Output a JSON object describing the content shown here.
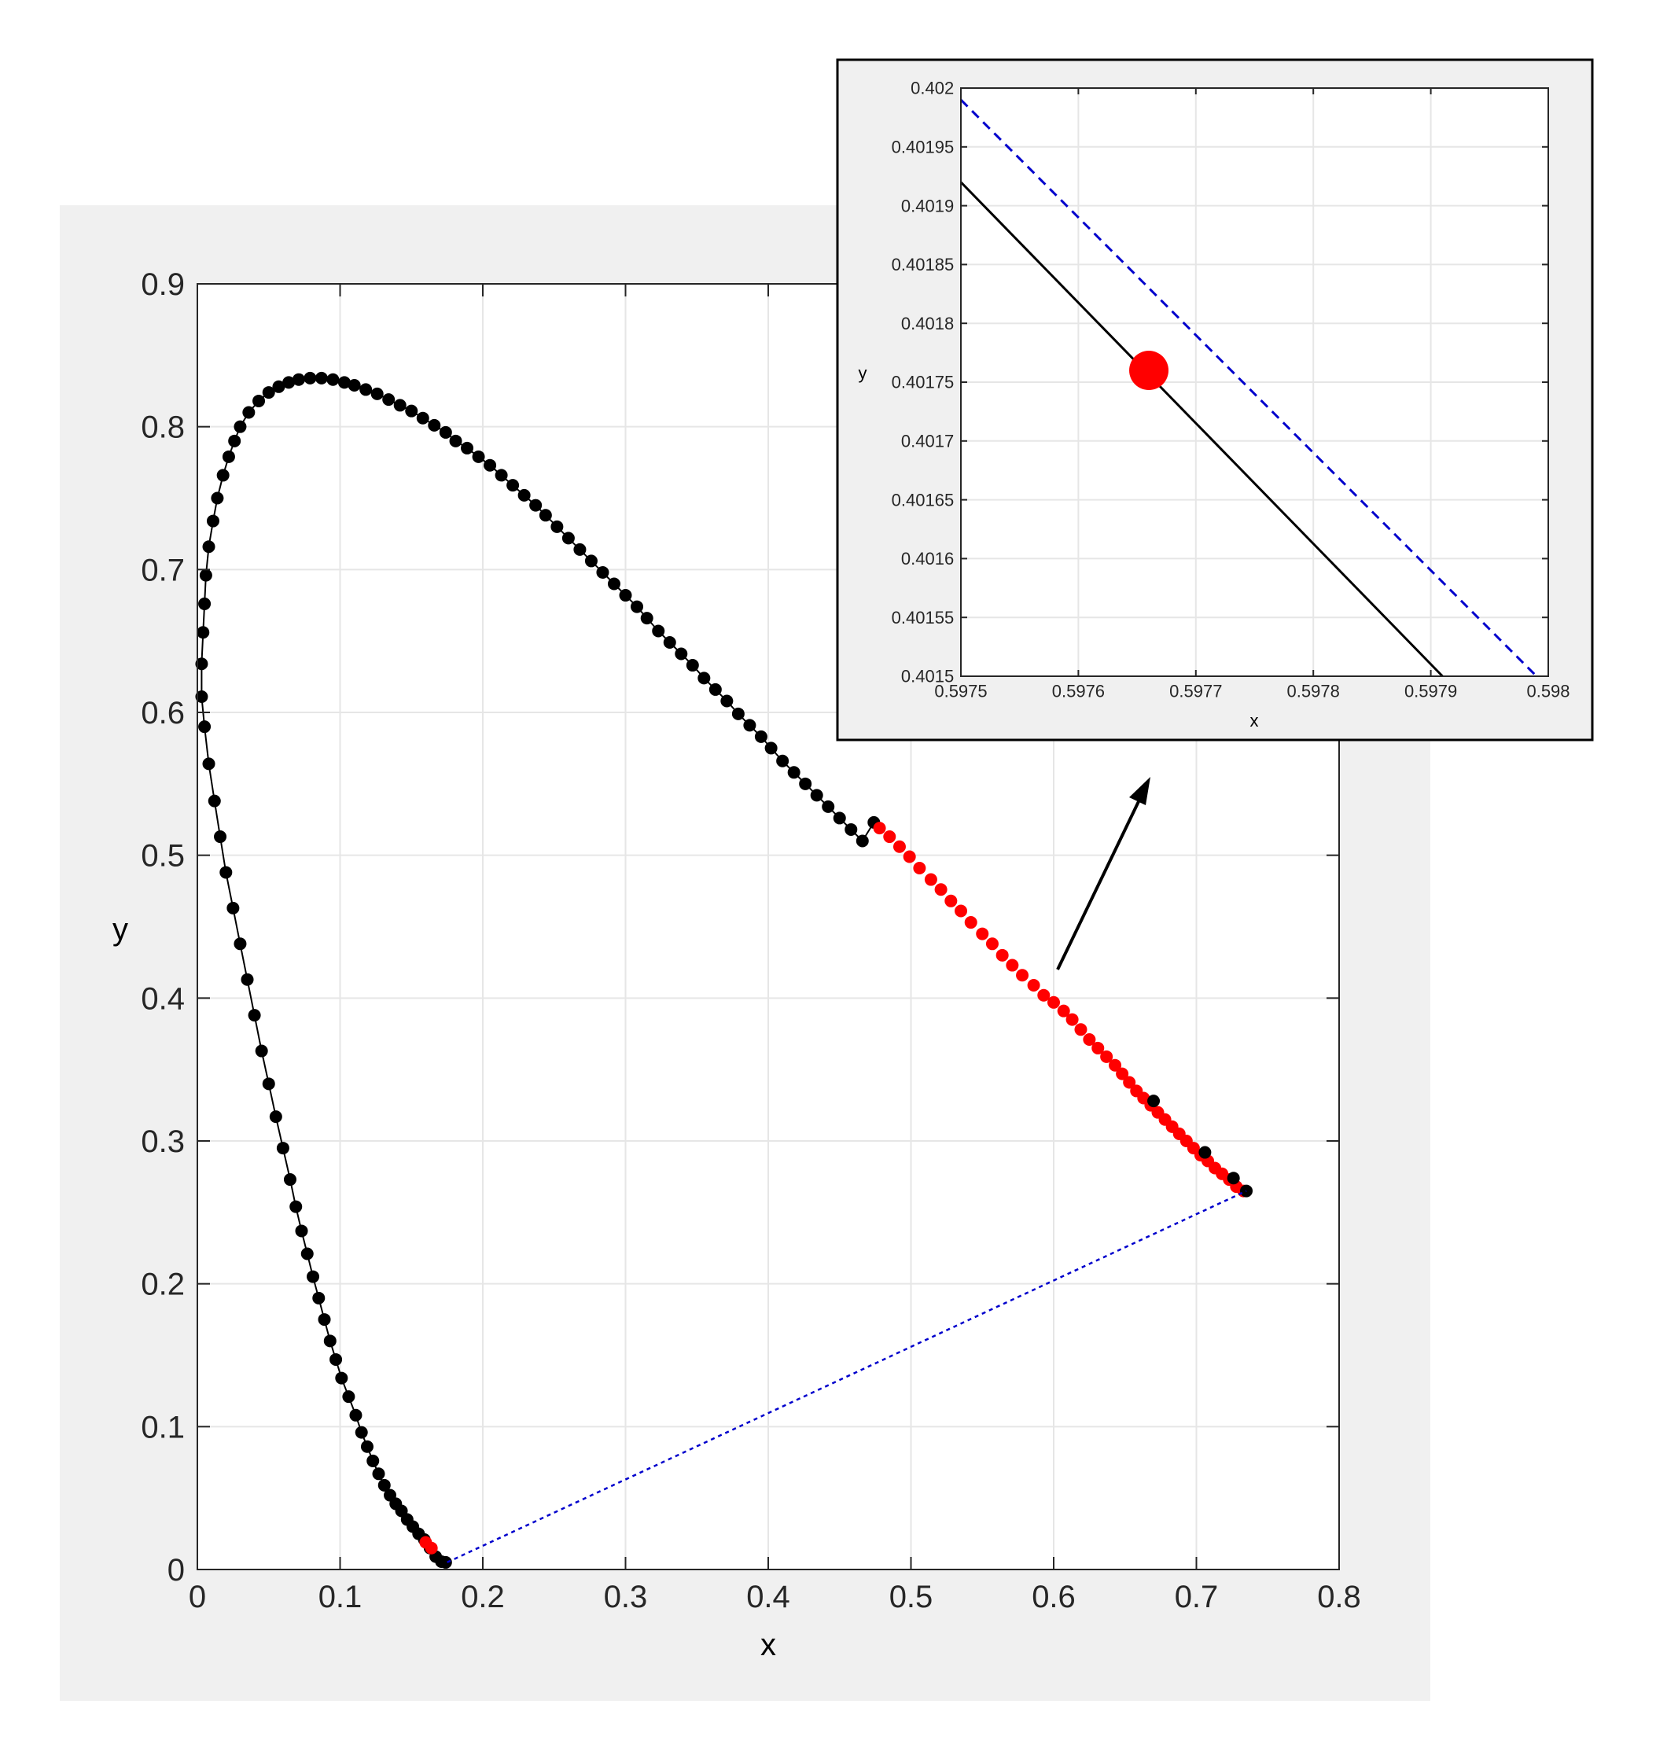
{
  "colors": {
    "figure_bg": "#f0f0f0",
    "axes_bg": "#ffffff",
    "grid": "#e6e6e6",
    "axis": "#262626",
    "point_default": "#000000",
    "point_highlight": "#ff0000",
    "curve_line": "#000000",
    "purple_line": "#0000cc",
    "inset_frame": "#000000"
  },
  "chart_data": [
    {
      "type": "scatter",
      "xlabel": "x",
      "ylabel": "y",
      "xlim": [
        0,
        0.8
      ],
      "ylim": [
        0,
        0.9
      ],
      "grid": true,
      "x_ticks": [
        0,
        0.1,
        0.2,
        0.3,
        0.4,
        0.5,
        0.6,
        0.7,
        0.8
      ],
      "y_ticks": [
        0,
        0.1,
        0.2,
        0.3,
        0.4,
        0.5,
        0.6,
        0.7,
        0.8,
        0.9
      ],
      "x_tick_labels": [
        "0",
        "0.1",
        "0.2",
        "0.3",
        "0.4",
        "0.5",
        "0.6",
        "0.7",
        "0.8"
      ],
      "y_tick_labels": [
        "0",
        "0.1",
        "0.2",
        "0.3",
        "0.4",
        "0.5",
        "0.6",
        "0.7",
        "0.8",
        "0.9"
      ],
      "series": [
        {
          "role": "spectral-locus",
          "marker": "filled-circle",
          "connected": true,
          "points": [
            [
              0.174,
              0.005
            ],
            [
              0.171,
              0.0055
            ],
            [
              0.167,
              0.009
            ],
            [
              0.163,
              0.015
            ],
            [
              0.159,
              0.021
            ],
            [
              0.155,
              0.025
            ],
            [
              0.151,
              0.03
            ],
            [
              0.147,
              0.035
            ],
            [
              0.143,
              0.041
            ],
            [
              0.139,
              0.046
            ],
            [
              0.135,
              0.052
            ],
            [
              0.131,
              0.059
            ],
            [
              0.127,
              0.067
            ],
            [
              0.123,
              0.076
            ],
            [
              0.119,
              0.086
            ],
            [
              0.115,
              0.096
            ],
            [
              0.111,
              0.108
            ],
            [
              0.106,
              0.121
            ],
            [
              0.101,
              0.134
            ],
            [
              0.097,
              0.147
            ],
            [
              0.093,
              0.16
            ],
            [
              0.089,
              0.175
            ],
            [
              0.085,
              0.19
            ],
            [
              0.081,
              0.205
            ],
            [
              0.077,
              0.221
            ],
            [
              0.073,
              0.237
            ],
            [
              0.069,
              0.254
            ],
            [
              0.065,
              0.273
            ],
            [
              0.06,
              0.295
            ],
            [
              0.055,
              0.317
            ],
            [
              0.05,
              0.34
            ],
            [
              0.045,
              0.363
            ],
            [
              0.04,
              0.388
            ],
            [
              0.035,
              0.413
            ],
            [
              0.03,
              0.438
            ],
            [
              0.025,
              0.463
            ],
            [
              0.02,
              0.488
            ],
            [
              0.016,
              0.513
            ],
            [
              0.012,
              0.538
            ],
            [
              0.008,
              0.564
            ],
            [
              0.005,
              0.59
            ],
            [
              0.003,
              0.611
            ],
            [
              0.003,
              0.634
            ],
            [
              0.004,
              0.656
            ],
            [
              0.005,
              0.676
            ],
            [
              0.006,
              0.696
            ],
            [
              0.008,
              0.716
            ],
            [
              0.011,
              0.734
            ],
            [
              0.014,
              0.75
            ],
            [
              0.018,
              0.766
            ],
            [
              0.022,
              0.779
            ],
            [
              0.026,
              0.79
            ],
            [
              0.03,
              0.8
            ],
            [
              0.036,
              0.81
            ],
            [
              0.043,
              0.818
            ],
            [
              0.05,
              0.824
            ],
            [
              0.057,
              0.828
            ],
            [
              0.064,
              0.831
            ],
            [
              0.071,
              0.833
            ],
            [
              0.079,
              0.834
            ],
            [
              0.087,
              0.834
            ],
            [
              0.095,
              0.833
            ],
            [
              0.103,
              0.831
            ],
            [
              0.11,
              0.829
            ],
            [
              0.118,
              0.826
            ],
            [
              0.126,
              0.823
            ],
            [
              0.134,
              0.819
            ],
            [
              0.142,
              0.815
            ],
            [
              0.15,
              0.811
            ],
            [
              0.158,
              0.806
            ],
            [
              0.166,
              0.801
            ],
            [
              0.174,
              0.796
            ],
            [
              0.181,
              0.79
            ],
            [
              0.189,
              0.785
            ],
            [
              0.197,
              0.779
            ],
            [
              0.205,
              0.773
            ],
            [
              0.213,
              0.766
            ],
            [
              0.221,
              0.759
            ],
            [
              0.229,
              0.752
            ],
            [
              0.237,
              0.745
            ],
            [
              0.244,
              0.738
            ],
            [
              0.252,
              0.73
            ],
            [
              0.26,
              0.722
            ],
            [
              0.268,
              0.714
            ],
            [
              0.276,
              0.706
            ],
            [
              0.284,
              0.698
            ],
            [
              0.292,
              0.69
            ],
            [
              0.3,
              0.682
            ],
            [
              0.308,
              0.674
            ],
            [
              0.315,
              0.666
            ],
            [
              0.323,
              0.657
            ],
            [
              0.331,
              0.649
            ],
            [
              0.339,
              0.641
            ],
            [
              0.347,
              0.633
            ],
            [
              0.355,
              0.624
            ],
            [
              0.363,
              0.616
            ],
            [
              0.371,
              0.608
            ],
            [
              0.379,
              0.599
            ],
            [
              0.387,
              0.591
            ],
            [
              0.395,
              0.583
            ],
            [
              0.402,
              0.575
            ],
            [
              0.41,
              0.566
            ],
            [
              0.418,
              0.558
            ],
            [
              0.426,
              0.55
            ],
            [
              0.434,
              0.542
            ],
            [
              0.442,
              0.534
            ],
            [
              0.45,
              0.526
            ],
            [
              0.458,
              0.518
            ],
            [
              0.466,
              0.51
            ],
            [
              0.474,
              0.523
            ]
          ]
        },
        {
          "role": "highlighted-points",
          "marker": "filled-circle",
          "points": [
            [
              0.478,
              0.519
            ],
            [
              0.485,
              0.513
            ],
            [
              0.492,
              0.506
            ],
            [
              0.499,
              0.499
            ],
            [
              0.506,
              0.491
            ],
            [
              0.514,
              0.483
            ],
            [
              0.521,
              0.476
            ],
            [
              0.528,
              0.468
            ],
            [
              0.535,
              0.461
            ],
            [
              0.542,
              0.453
            ],
            [
              0.55,
              0.445
            ],
            [
              0.557,
              0.438
            ],
            [
              0.564,
              0.43
            ],
            [
              0.571,
              0.423
            ],
            [
              0.578,
              0.416
            ],
            [
              0.586,
              0.409
            ],
            [
              0.593,
              0.402
            ],
            [
              0.6,
              0.397
            ],
            [
              0.607,
              0.391
            ],
            [
              0.613,
              0.385
            ],
            [
              0.619,
              0.378
            ],
            [
              0.625,
              0.371
            ],
            [
              0.631,
              0.365
            ],
            [
              0.637,
              0.359
            ],
            [
              0.643,
              0.353
            ],
            [
              0.648,
              0.347
            ],
            [
              0.653,
              0.341
            ],
            [
              0.658,
              0.335
            ],
            [
              0.663,
              0.33
            ],
            [
              0.668,
              0.325
            ],
            [
              0.673,
              0.32
            ],
            [
              0.678,
              0.315
            ],
            [
              0.683,
              0.31
            ],
            [
              0.688,
              0.305
            ],
            [
              0.693,
              0.3
            ],
            [
              0.698,
              0.295
            ],
            [
              0.703,
              0.29
            ],
            [
              0.708,
              0.286
            ],
            [
              0.713,
              0.281
            ],
            [
              0.718,
              0.277
            ],
            [
              0.723,
              0.273
            ],
            [
              0.728,
              0.268
            ],
            [
              0.733,
              0.265
            ],
            [
              0.164,
              0.015
            ],
            [
              0.16,
              0.019
            ]
          ]
        },
        {
          "role": "black-points-on-red-line",
          "marker": "filled-circle",
          "points": [
            [
              0.67,
              0.328
            ],
            [
              0.706,
              0.292
            ],
            [
              0.726,
              0.274
            ],
            [
              0.735,
              0.265
            ]
          ]
        },
        {
          "role": "purple-line",
          "style": "dotted",
          "points": [
            [
              0.175,
              0.005
            ],
            [
              0.735,
              0.265
            ]
          ]
        }
      ]
    },
    {
      "type": "line",
      "xlabel": "x",
      "ylabel": "y",
      "xlim": [
        0.5975,
        0.598
      ],
      "ylim": [
        0.4015,
        0.402
      ],
      "grid": true,
      "x_ticks": [
        0.5975,
        0.5976,
        0.5977,
        0.5978,
        0.5979,
        0.598
      ],
      "y_ticks": [
        0.4015,
        0.40155,
        0.4016,
        0.40165,
        0.4017,
        0.40175,
        0.4018,
        0.40185,
        0.4019,
        0.40195,
        0.402
      ],
      "x_tick_labels": [
        "0.5975",
        "0.5976",
        "0.5977",
        "0.5978",
        "0.5979",
        "0.598"
      ],
      "y_tick_labels": [
        "0.4015",
        "0.40155",
        "0.4016",
        "0.40165",
        "0.4017",
        "0.40175",
        "0.4018",
        "0.40185",
        "0.4019",
        "0.40195",
        "0.402"
      ],
      "series": [
        {
          "role": "locus-segment",
          "style": "solid",
          "points": [
            [
              0.5975,
              0.40192
            ],
            [
              0.59791,
              0.4015
            ]
          ]
        },
        {
          "role": "purple-line",
          "style": "dashed",
          "points": [
            [
              0.5975,
              0.40199
            ],
            [
              0.59799,
              0.4015
            ]
          ]
        },
        {
          "role": "highlighted-point",
          "marker": "filled-circle",
          "points": [
            [
              0.59766,
              0.40176
            ]
          ]
        }
      ]
    }
  ]
}
